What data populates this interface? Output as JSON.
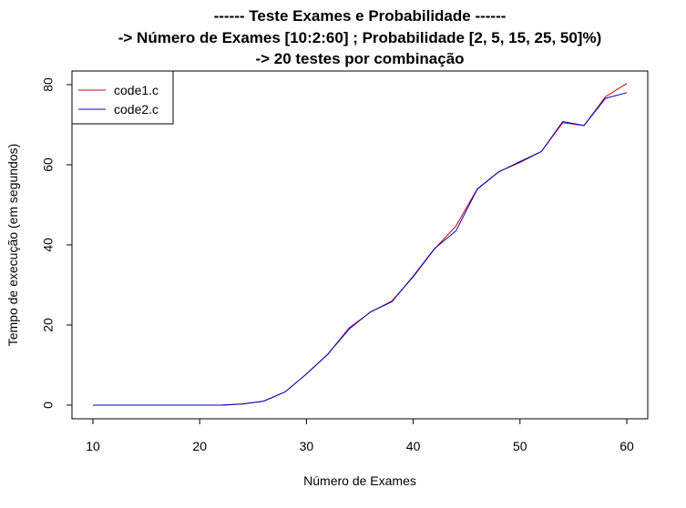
{
  "chart_data": {
    "type": "line",
    "title": [
      "------ Teste Exames e Probabilidade ------",
      "-> Número de Exames [10:2:60] ; Probabilidade [2, 5, 15, 25, 50]%)",
      "-> 20 testes por combinação"
    ],
    "xlabel": "Número de Exames",
    "ylabel": "Tempo de execução (em segundos)",
    "xlim": [
      10,
      60
    ],
    "ylim": [
      0,
      80
    ],
    "xticks": [
      10,
      20,
      30,
      40,
      50,
      60
    ],
    "yticks": [
      0,
      20,
      40,
      60,
      80
    ],
    "grid": false,
    "legend_position": "top-left",
    "x": [
      10,
      12,
      14,
      16,
      18,
      20,
      22,
      24,
      26,
      28,
      30,
      32,
      34,
      36,
      38,
      40,
      42,
      44,
      46,
      48,
      50,
      52,
      54,
      56,
      58,
      60
    ],
    "series": [
      {
        "name": "code1.c",
        "color": "#cc0000",
        "values": [
          0,
          0,
          0,
          0,
          0,
          0,
          0,
          0.3,
          1.0,
          3.3,
          7.8,
          12.7,
          19.3,
          23.2,
          26.0,
          32.0,
          39.0,
          44.7,
          54.0,
          58.3,
          60.6,
          63.3,
          70.5,
          69.8,
          77.0,
          80.3
        ]
      },
      {
        "name": "code2.c",
        "color": "#0000cc",
        "values": [
          0,
          0,
          0,
          0,
          0,
          0,
          0,
          0.3,
          1.0,
          3.3,
          7.8,
          12.7,
          19.0,
          23.3,
          25.8,
          32.2,
          39.1,
          43.5,
          53.9,
          58.2,
          60.8,
          63.3,
          70.8,
          69.8,
          76.6,
          78.0
        ]
      }
    ]
  }
}
